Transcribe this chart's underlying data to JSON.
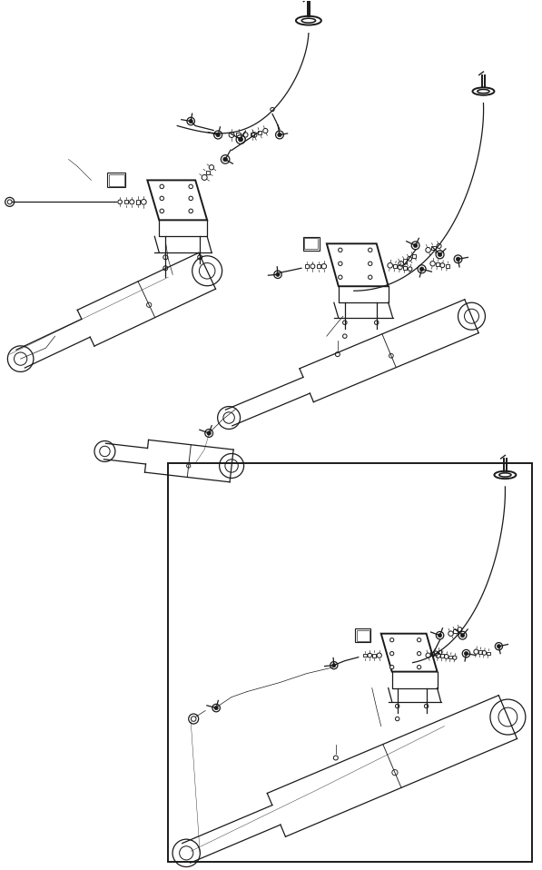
{
  "bg_color": "#ffffff",
  "line_color": "#1a1a1a",
  "fig_width": 5.97,
  "fig_height": 9.58,
  "lw_thin": 0.5,
  "lw_med": 0.9,
  "lw_thick": 1.4,
  "lw_vthick": 2.2
}
